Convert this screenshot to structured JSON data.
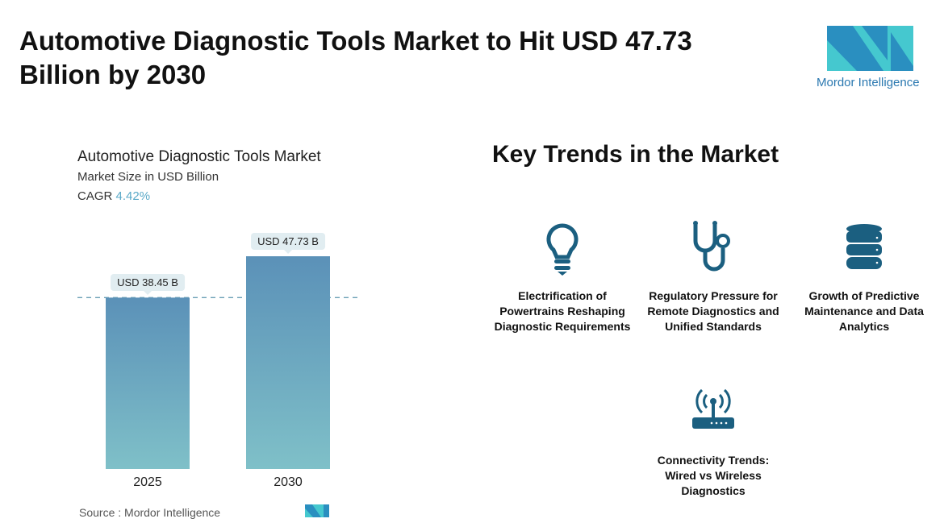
{
  "header": {
    "title": "Automotive Diagnostic Tools Market to Hit USD 47.73 Billion by 2030",
    "logo_text": "Mordor Intelligence"
  },
  "colors": {
    "bar_top": "#5b91b8",
    "bar_bottom": "#7fc0c8",
    "icon": "#1b5f80",
    "accent": "#5aa9c8"
  },
  "chart_data": {
    "type": "bar",
    "title": "Automotive Diagnostic Tools Market",
    "subtitle": "Market Size in USD Billion",
    "cagr_label": "CAGR",
    "cagr_value": "4.42%",
    "categories": [
      "2025",
      "2030"
    ],
    "values": [
      38.45,
      47.73
    ],
    "data_labels": [
      "USD 38.45 B",
      "USD 47.73 B"
    ],
    "ylim": [
      0,
      50
    ],
    "reference_line": "dashed at 2025 value"
  },
  "footer": {
    "source": "Source :  Mordor Intelligence"
  },
  "trends": {
    "title": "Key Trends in the Market",
    "items": [
      {
        "icon": "lightbulb-icon",
        "label": "Electrification of Powertrains Reshaping Diagnostic Requirements"
      },
      {
        "icon": "stethoscope-icon",
        "label": "Regulatory Pressure for Remote Diagnostics and Unified Standards"
      },
      {
        "icon": "database-icon",
        "label": "Growth of Predictive Maintenance and Data Analytics"
      },
      {
        "icon": "router-icon",
        "label": "Connectivity Trends: Wired vs Wireless Diagnostics"
      }
    ]
  }
}
